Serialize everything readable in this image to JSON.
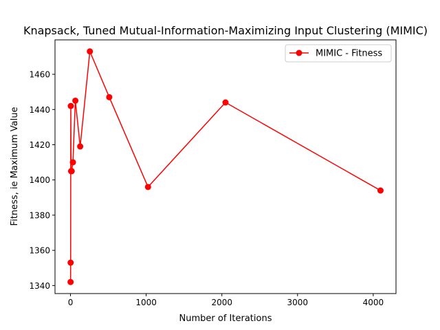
{
  "chart_data": {
    "type": "line",
    "title": "Knapsack, Tuned Mutual-Information-Maximizing Input Clustering (MIMIC)",
    "xlabel": "Number of Iterations",
    "ylabel": "Fitness, ie Maximum Value",
    "xlim": [
      -204.75,
      4300.75
    ],
    "ylim": [
      1335.45,
      1479.55
    ],
    "xticks": [
      0,
      1000,
      2000,
      3000,
      4000
    ],
    "xtick_labels": [
      "0",
      "1000",
      "2000",
      "3000",
      "4000"
    ],
    "yticks": [
      1340,
      1360,
      1380,
      1400,
      1420,
      1440,
      1460
    ],
    "ytick_labels": [
      "1340",
      "1360",
      "1380",
      "1400",
      "1420",
      "1440",
      "1460"
    ],
    "grid": false,
    "legend_position": "top-right",
    "series": [
      {
        "name": "MIMIC - Fitness",
        "color": "#ff0000",
        "marker": "circle",
        "x": [
          1,
          2,
          4,
          8,
          16,
          32,
          64,
          128,
          256,
          512,
          1024,
          2048,
          4096
        ],
        "y": [
          1342,
          1353,
          1442,
          1405,
          1405,
          1410,
          1445,
          1419,
          1473,
          1447,
          1396,
          1444,
          1394
        ]
      }
    ]
  }
}
